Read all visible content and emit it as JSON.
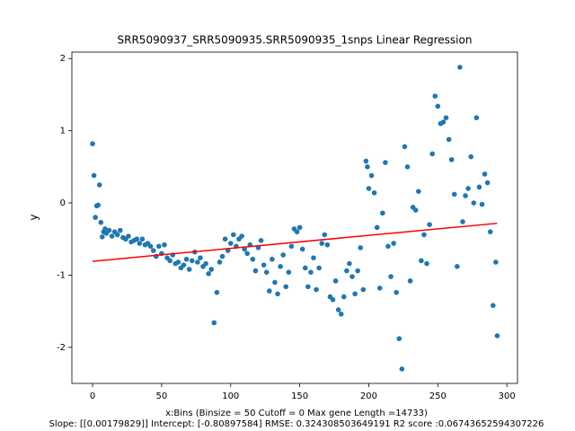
{
  "chart_data": {
    "type": "scatter",
    "title": "SRR5090937_SRR5090935.SRR5090935_1snps Linear Regression",
    "xlabel": [
      "x:Bins  (Binsize = 50 Cutoff = 0 Max gene Length =14733)",
      "Slope: [[0.00179829]] Intercept: [-0.80897584] RMSE: 0.324308503649191 R2 score :0.06743652594307226"
    ],
    "ylabel": "y",
    "xlim": [
      -15,
      307.7
    ],
    "ylim": [
      -2.5,
      2.09
    ],
    "xticks": [
      0,
      50,
      100,
      150,
      200,
      250,
      300
    ],
    "yticks": [
      -2,
      -1,
      0,
      1,
      2
    ],
    "color": "#1f77b4",
    "x": [
      0,
      1,
      2,
      3,
      4,
      5,
      6,
      7,
      8,
      9,
      10,
      12,
      14,
      16,
      18,
      20,
      22,
      24,
      26,
      28,
      30,
      32,
      34,
      36,
      38,
      40,
      42,
      44,
      46,
      48,
      50,
      52,
      54,
      56,
      58,
      60,
      62,
      64,
      66,
      68,
      70,
      72,
      74,
      76,
      78,
      80,
      82,
      84,
      86,
      88,
      90,
      92,
      94,
      96,
      98,
      100,
      102,
      104,
      106,
      108,
      110,
      112,
      114,
      116,
      118,
      120,
      122,
      124,
      126,
      128,
      130,
      132,
      134,
      136,
      138,
      140,
      142,
      144,
      146,
      148,
      150,
      152,
      154,
      156,
      158,
      160,
      162,
      164,
      166,
      168,
      170,
      172,
      174,
      176,
      178,
      180,
      182,
      184,
      186,
      188,
      190,
      192,
      194,
      196,
      198,
      199,
      200,
      202,
      204,
      206,
      208,
      210,
      212,
      214,
      216,
      218,
      220,
      222,
      224,
      226,
      228,
      230,
      232,
      234,
      236,
      238,
      240,
      242,
      244,
      246,
      248,
      250,
      252,
      254,
      256,
      258,
      260,
      262,
      264,
      266,
      268,
      270,
      272,
      274,
      276,
      278,
      280,
      282,
      284,
      286,
      288,
      290,
      292,
      293
    ],
    "values": [
      0.82,
      0.38,
      -0.2,
      -0.04,
      -0.03,
      0.25,
      -0.27,
      -0.47,
      -0.4,
      -0.36,
      -0.42,
      -0.38,
      -0.46,
      -0.4,
      -0.44,
      -0.38,
      -0.48,
      -0.5,
      -0.46,
      -0.54,
      -0.52,
      -0.5,
      -0.56,
      -0.5,
      -0.58,
      -0.56,
      -0.6,
      -0.66,
      -0.74,
      -0.6,
      -0.7,
      -0.58,
      -0.76,
      -0.8,
      -0.72,
      -0.84,
      -0.82,
      -0.9,
      -0.86,
      -0.78,
      -0.92,
      -0.8,
      -0.68,
      -0.82,
      -0.76,
      -0.88,
      -0.84,
      -0.98,
      -0.92,
      -1.66,
      -1.24,
      -0.82,
      -0.74,
      -0.5,
      -0.66,
      -0.56,
      -0.44,
      -0.6,
      -0.5,
      -0.46,
      -0.64,
      -0.7,
      -0.58,
      -0.78,
      -0.94,
      -0.62,
      -0.52,
      -0.86,
      -0.96,
      -1.22,
      -0.78,
      -1.1,
      -1.26,
      -0.88,
      -0.72,
      -1.16,
      -0.96,
      -0.6,
      -0.36,
      -0.4,
      -0.34,
      -0.64,
      -0.9,
      -1.16,
      -0.96,
      -0.76,
      -1.2,
      -0.9,
      -0.56,
      -0.44,
      -0.58,
      -1.3,
      -1.34,
      -1.08,
      -1.48,
      -1.54,
      -1.3,
      -0.94,
      -0.84,
      -1.02,
      -1.26,
      -0.94,
      -0.62,
      -1.2,
      0.58,
      0.5,
      0.2,
      0.38,
      0.14,
      -0.34,
      -1.18,
      -0.14,
      0.56,
      -0.6,
      -1.02,
      -0.56,
      -1.24,
      -1.88,
      -2.3,
      0.78,
      0.5,
      -1.08,
      -0.06,
      -0.1,
      0.16,
      -0.8,
      -0.44,
      -0.84,
      -0.3,
      0.68,
      1.48,
      1.34,
      1.1,
      1.12,
      1.18,
      0.88,
      0.6,
      0.12,
      -0.88,
      1.88,
      -0.26,
      0.1,
      0.2,
      0.64,
      0.0,
      1.18,
      0.22,
      -0.02,
      0.4,
      0.28,
      -0.4,
      -1.42,
      -0.82,
      -1.84
    ],
    "regression": {
      "color": "red",
      "x": [
        0,
        293
      ],
      "values": [
        -0.809,
        -0.282
      ]
    }
  }
}
